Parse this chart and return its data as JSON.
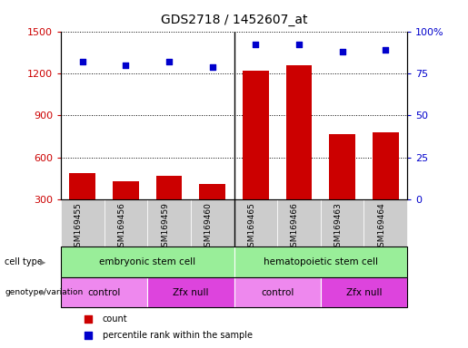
{
  "title": "GDS2718 / 1452607_at",
  "samples": [
    "GSM169455",
    "GSM169456",
    "GSM169459",
    "GSM169460",
    "GSM169465",
    "GSM169466",
    "GSM169463",
    "GSM169464"
  ],
  "counts": [
    490,
    430,
    470,
    410,
    1220,
    1260,
    770,
    780
  ],
  "percentile_ranks": [
    82,
    80,
    82,
    79,
    92,
    92,
    88,
    89
  ],
  "ylim_left": [
    300,
    1500
  ],
  "ylim_right": [
    0,
    100
  ],
  "yticks_left": [
    300,
    600,
    900,
    1200,
    1500
  ],
  "yticks_right": [
    0,
    25,
    50,
    75,
    100
  ],
  "bar_color": "#cc0000",
  "dot_color": "#0000cc",
  "cell_type_color": "#99ee99",
  "genotype_control_color": "#ee88ee",
  "genotype_zfx_color": "#dd44dd",
  "background_color": "#ffffff",
  "tick_label_color_left": "#cc0000",
  "tick_label_color_right": "#0000cc",
  "sample_bg_color": "#cccccc",
  "divider_color": "#000000",
  "cell_type_groups": [
    {
      "label": "embryonic stem cell",
      "start": 0,
      "end": 4
    },
    {
      "label": "hematopoietic stem cell",
      "start": 4,
      "end": 8
    }
  ],
  "genotype_groups": [
    {
      "label": "control",
      "start": 0,
      "end": 2,
      "color": "#ee88ee"
    },
    {
      "label": "Zfx null",
      "start": 2,
      "end": 4,
      "color": "#dd44dd"
    },
    {
      "label": "control",
      "start": 4,
      "end": 6,
      "color": "#ee88ee"
    },
    {
      "label": "Zfx null",
      "start": 6,
      "end": 8,
      "color": "#dd44dd"
    }
  ]
}
